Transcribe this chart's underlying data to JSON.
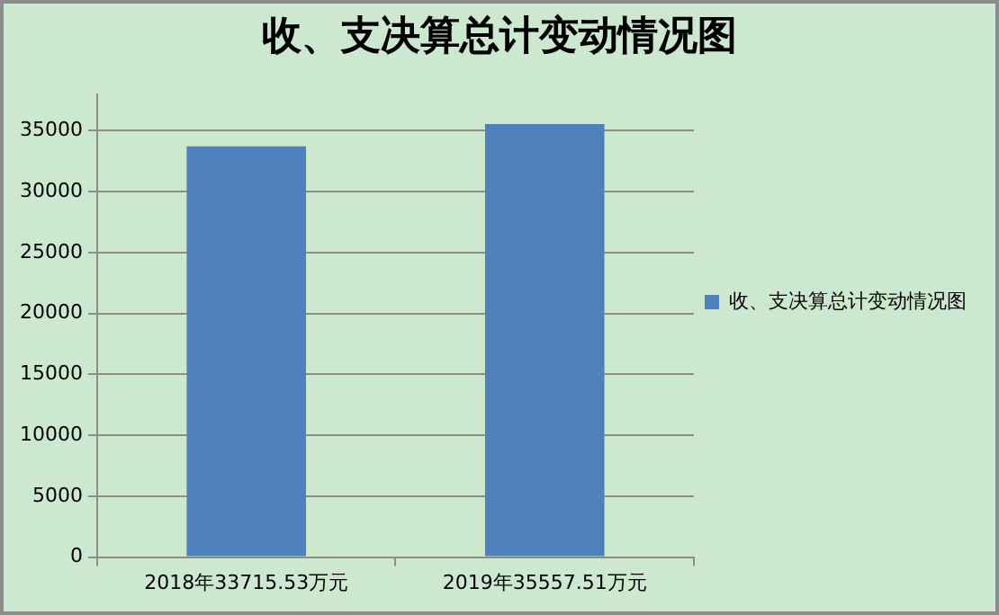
{
  "chart_data": {
    "type": "bar",
    "title": "收、支决算总计变动情况图",
    "categories": [
      "2018年33715.53万元",
      "2019年35557.51万元"
    ],
    "series": [
      {
        "name": "收、支决算总计变动情况图",
        "color": "#4f81bd",
        "values": [
          33715.53,
          35557.51
        ]
      }
    ],
    "ylim": [
      0,
      38000
    ],
    "yticks": [
      0,
      5000,
      10000,
      15000,
      20000,
      25000,
      30000,
      35000
    ],
    "grid": "y",
    "legend": "right"
  }
}
